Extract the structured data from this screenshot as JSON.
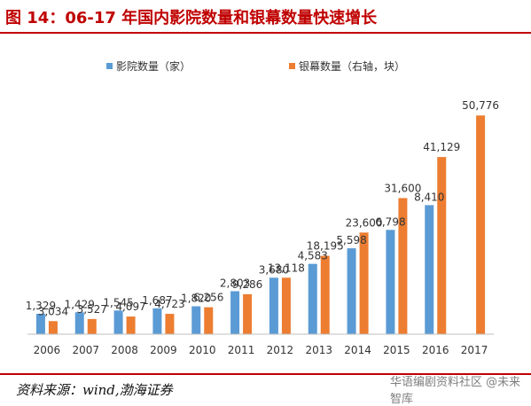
{
  "title": "图 14：06-17 年国内影院数量和银幕数量快速增长",
  "source": "资料来源：wind,渤海证券",
  "watermark": "华语编剧资料社区 @未来智库",
  "colors": {
    "cinemas": "#5b9bd5",
    "screens": "#ed7d31",
    "accent": "#c00000"
  },
  "chart_data": {
    "type": "bar",
    "categories": [
      "2006",
      "2007",
      "2008",
      "2009",
      "2010",
      "2011",
      "2012",
      "2013",
      "2014",
      "2015",
      "2016",
      "2017"
    ],
    "series": [
      {
        "name": "影院数量（家）",
        "values": [
          1329,
          1429,
          1545,
          1687,
          1820,
          2803,
          3680,
          4583,
          5598,
          6798,
          8410,
          null
        ],
        "labels": [
          "1,329",
          "1,429",
          "1,545",
          "1,687",
          "1,820",
          "2,803",
          "3,680",
          "4,583",
          "5,598",
          "6,798",
          "8,410",
          null
        ]
      },
      {
        "name": "银幕数量（右轴，块）",
        "values": [
          3034,
          3527,
          4097,
          4723,
          6256,
          9286,
          13118,
          18195,
          23600,
          31600,
          41129,
          50776
        ],
        "labels": [
          "3,034",
          "3,527",
          "4,097",
          "4,723",
          "6,256",
          "9,286",
          "13,118",
          "18,195",
          "23,600",
          "31,600",
          "41,129",
          "50,776"
        ]
      }
    ],
    "left_axis_max": 16000,
    "right_axis_max": 57000,
    "legend_position": "top"
  }
}
